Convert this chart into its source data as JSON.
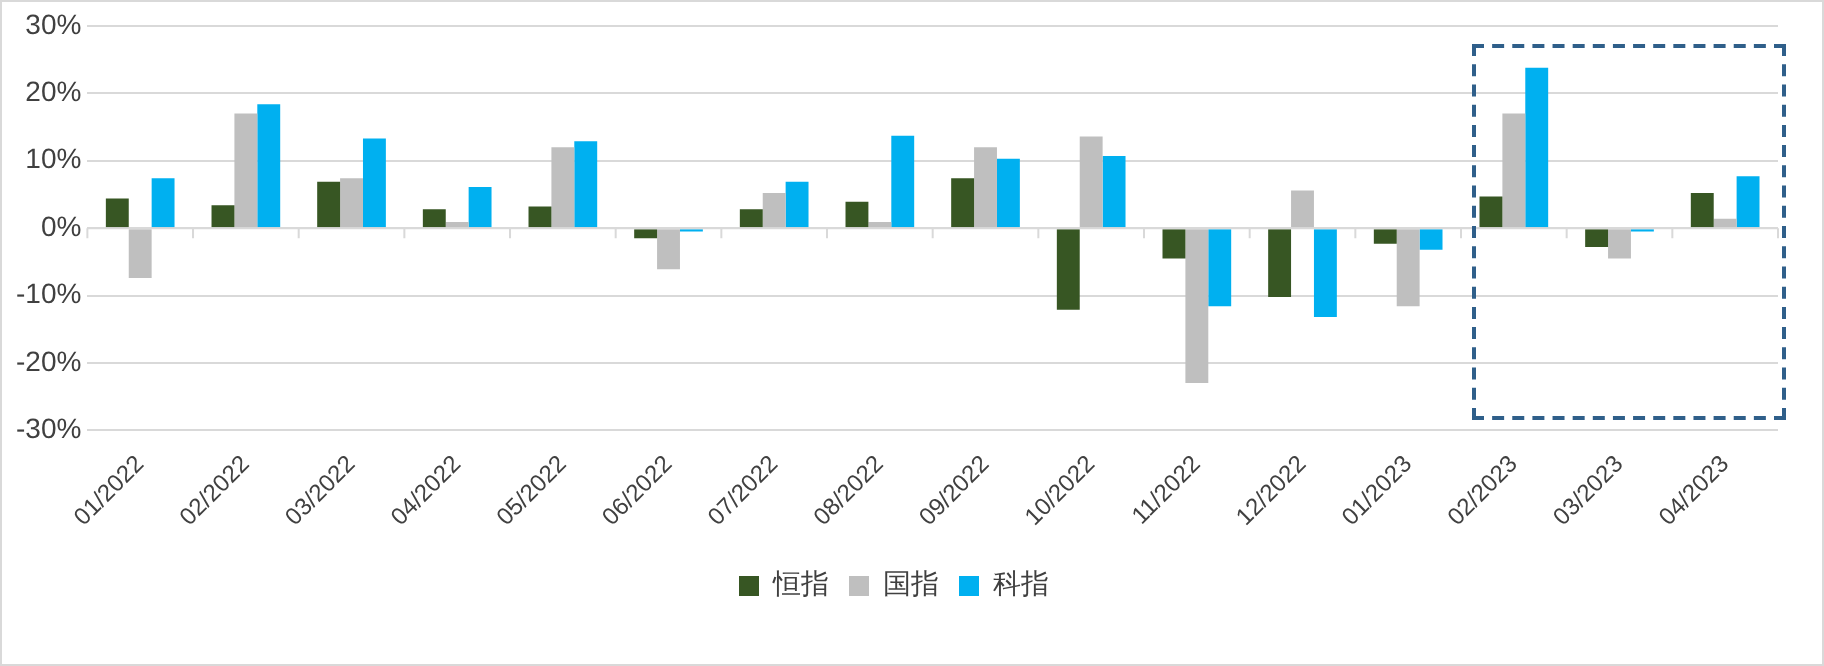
{
  "chart_data": {
    "type": "bar",
    "categories": [
      "01/2022",
      "02/2022",
      "03/2022",
      "04/2022",
      "05/2022",
      "06/2022",
      "07/2022",
      "08/2022",
      "09/2022",
      "10/2022",
      "11/2022",
      "12/2022",
      "01/2023",
      "02/2023",
      "03/2023",
      "04/2023"
    ],
    "series": [
      {
        "name": "恒指",
        "color": "#375623",
        "values": [
          4.4,
          3.4,
          6.9,
          2.8,
          3.2,
          -1.5,
          2.8,
          3.9,
          7.4,
          -12.1,
          -4.5,
          -10.2,
          -2.3,
          4.7,
          -2.8,
          5.2
        ]
      },
      {
        "name": "国指",
        "color": "#bfbfbf",
        "values": [
          -7.4,
          17,
          7.4,
          0.9,
          12,
          -6.1,
          5.2,
          0.9,
          12,
          13.6,
          -23,
          5.6,
          -11.6,
          17,
          -4.5,
          1.4
        ]
      },
      {
        "name": "科指",
        "color": "#00b0f0",
        "values": [
          7.4,
          18.4,
          13.3,
          6.1,
          12.9,
          -0.5,
          6.9,
          13.7,
          10.3,
          10.7,
          -11.6,
          -13.2,
          -3.2,
          23.8,
          -0.5,
          7.7
        ]
      }
    ],
    "ylim": [
      -30,
      30
    ],
    "yticks": [
      {
        "value": -30,
        "label": "-30%"
      },
      {
        "value": -20,
        "label": "-20%"
      },
      {
        "value": -10,
        "label": "-10%"
      },
      {
        "value": 0,
        "label": "0%"
      },
      {
        "value": 10,
        "label": "10%"
      },
      {
        "value": 20,
        "label": "20%"
      },
      {
        "value": 30,
        "label": "30%"
      }
    ],
    "grid": "y",
    "legend": "bottom"
  }
}
